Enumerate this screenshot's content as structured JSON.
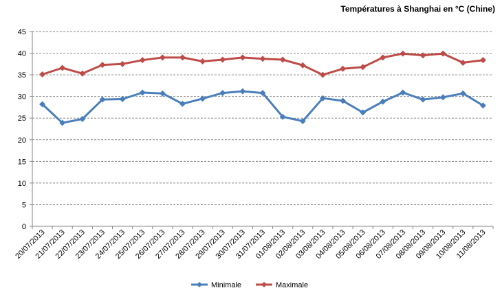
{
  "chart_data": {
    "type": "line",
    "title": "Températures à Shanghai en °C (Chine)",
    "xlabel": "",
    "ylabel": "",
    "ylim": [
      0,
      45
    ],
    "yticks": [
      0,
      5,
      10,
      15,
      20,
      25,
      30,
      35,
      40,
      45
    ],
    "grid": true,
    "legend_position": "bottom",
    "categories": [
      "20/07/2013",
      "21/07/2013",
      "22/07/2013",
      "23/07/2013",
      "24/07/2013",
      "25/07/2013",
      "26/07/2013",
      "27/07/2013",
      "28/07/2013",
      "29/07/2013",
      "30/07/2013",
      "31/07/2013",
      "01/08/2013",
      "02/08/2013",
      "03/08/2013",
      "04/08/2013",
      "05/08/2013",
      "06/08/2013",
      "07/08/2013",
      "08/08/2013",
      "09/08/2013",
      "10/08/2013",
      "11/08/2013"
    ],
    "series": [
      {
        "name": "Minimale",
        "color": "#4a7ebb",
        "marker": "diamond",
        "values": [
          28.2,
          23.9,
          24.8,
          29.3,
          29.4,
          30.9,
          30.7,
          28.3,
          29.5,
          30.8,
          31.2,
          30.8,
          25.3,
          24.3,
          29.6,
          29.0,
          26.3,
          28.8,
          30.9,
          29.3,
          29.8,
          30.7,
          27.9
        ]
      },
      {
        "name": "Maximale",
        "color": "#be4b48",
        "marker": "diamond",
        "values": [
          35.1,
          36.6,
          35.3,
          37.3,
          37.5,
          38.4,
          39.0,
          39.0,
          38.1,
          38.5,
          39.0,
          38.7,
          38.5,
          37.2,
          35.0,
          36.4,
          36.8,
          39.0,
          39.9,
          39.5,
          39.9,
          37.8,
          38.4
        ]
      }
    ]
  }
}
